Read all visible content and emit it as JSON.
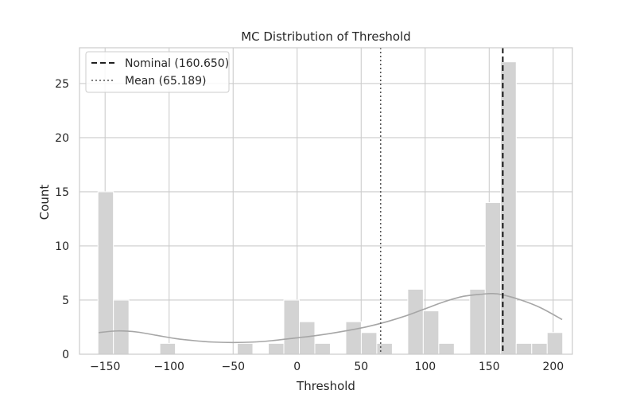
{
  "chart_data": {
    "type": "bar",
    "title": "MC Distribution of Threshold",
    "xlabel": "Threshold",
    "ylabel": "Count",
    "xlim": [
      -170,
      215
    ],
    "ylim": [
      0,
      28.3
    ],
    "xticks": [
      -150,
      -100,
      -50,
      0,
      50,
      100,
      150,
      200
    ],
    "xtick_labels": [
      "−150",
      "−100",
      "−50",
      "0",
      "50",
      "100",
      "150",
      "200"
    ],
    "yticks": [
      0,
      5,
      10,
      15,
      20,
      25
    ],
    "ytick_labels": [
      "0",
      "5",
      "10",
      "15",
      "20",
      "25"
    ],
    "grid": true,
    "bin_width": 12.1,
    "bins": [
      {
        "left": -155.6,
        "count": 15
      },
      {
        "left": -143.5,
        "count": 5
      },
      {
        "left": -107.2,
        "count": 1
      },
      {
        "left": -46.7,
        "count": 1
      },
      {
        "left": -22.5,
        "count": 1
      },
      {
        "left": -10.4,
        "count": 5
      },
      {
        "left": 1.7,
        "count": 3
      },
      {
        "left": 13.8,
        "count": 1
      },
      {
        "left": 38.0,
        "count": 3
      },
      {
        "left": 50.1,
        "count": 2
      },
      {
        "left": 62.2,
        "count": 1
      },
      {
        "left": 86.4,
        "count": 6
      },
      {
        "left": 98.5,
        "count": 4
      },
      {
        "left": 110.6,
        "count": 1
      },
      {
        "left": 134.8,
        "count": 6
      },
      {
        "left": 146.9,
        "count": 14
      },
      {
        "left": 159.0,
        "count": 27
      },
      {
        "left": 171.1,
        "count": 1
      },
      {
        "left": 183.2,
        "count": 1
      },
      {
        "left": 195.3,
        "count": 2
      }
    ],
    "kde": {
      "x": [
        -155,
        -140,
        -125,
        -110,
        -95,
        -80,
        -65,
        -50,
        -35,
        -20,
        -5,
        10,
        25,
        40,
        55,
        70,
        85,
        100,
        115,
        130,
        145,
        152,
        160,
        175,
        190,
        207
      ],
      "y": [
        2.0,
        2.15,
        2.05,
        1.75,
        1.45,
        1.25,
        1.12,
        1.08,
        1.12,
        1.25,
        1.45,
        1.65,
        1.9,
        2.2,
        2.55,
        3.0,
        3.55,
        4.2,
        4.85,
        5.35,
        5.55,
        5.6,
        5.5,
        5.0,
        4.3,
        3.2
      ]
    },
    "nominal": {
      "label": "Nominal (160.650)",
      "value": 160.65
    },
    "mean": {
      "label": "Mean (65.189)",
      "value": 65.189
    },
    "legend_position": "top-left",
    "colors": {
      "bar": "#d3d3d3",
      "kde": "#a6a6a6",
      "nominal": "#000000",
      "mean": "#555555",
      "grid": "#cccccc",
      "frame": "#cccccc"
    }
  }
}
